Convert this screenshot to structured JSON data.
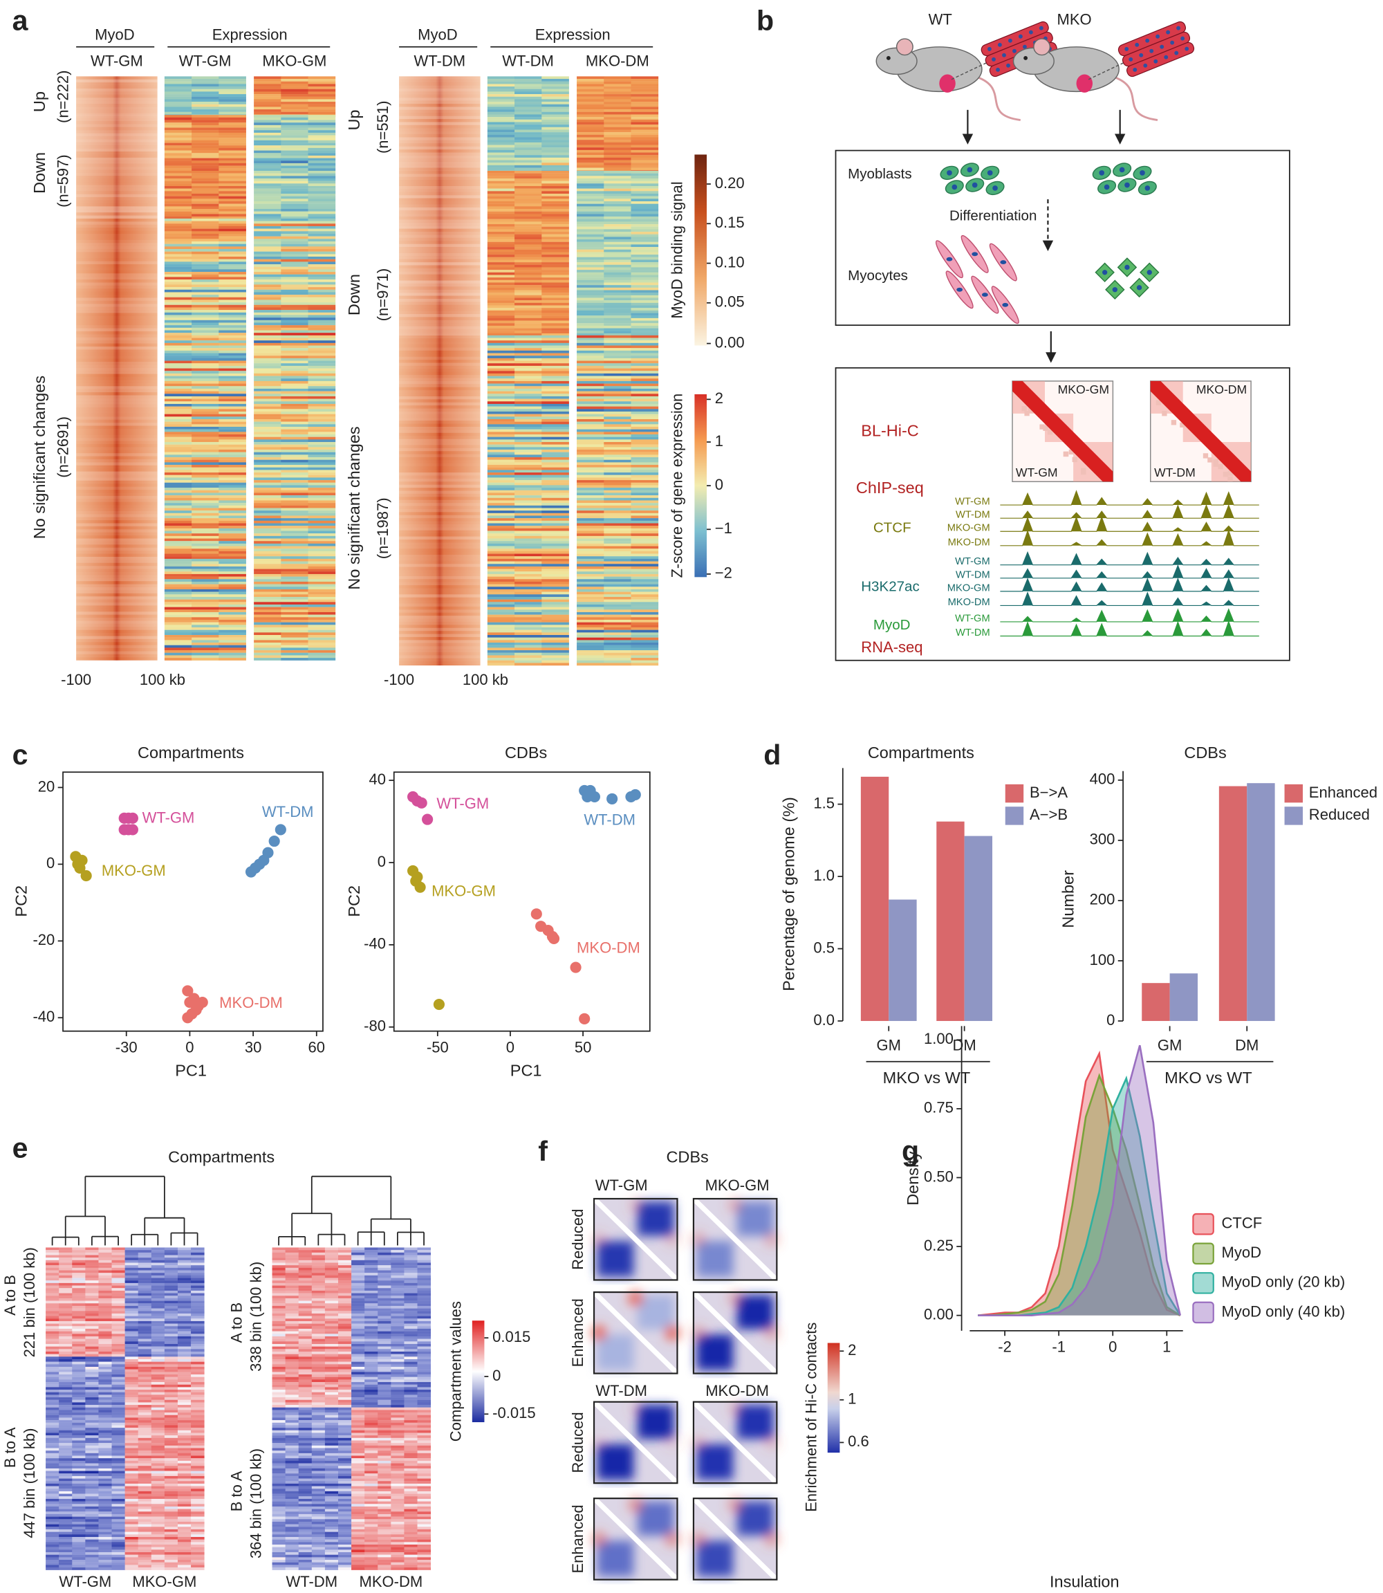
{
  "panels": {
    "a": {
      "label": "a",
      "left": {
        "myod": "MyoD",
        "myod_sample": "WT-GM",
        "expression": "Expression",
        "samples": [
          "WT-GM",
          "MKO-GM"
        ],
        "groups": [
          {
            "name": "Up",
            "n": "(n=222)"
          },
          {
            "name": "Down",
            "n": "(n=597)"
          },
          {
            "name": "No significant changes",
            "n": "(n=2691)"
          }
        ],
        "axis": [
          "-100",
          "100 kb"
        ]
      },
      "right": {
        "myod": "MyoD",
        "myod_sample": "WT-DM",
        "expression": "Expression",
        "samples": [
          "WT-DM",
          "MKO-DM"
        ],
        "groups": [
          {
            "name": "Up",
            "n": "(n=551)"
          },
          {
            "name": "Down",
            "n": "(n=971)"
          },
          {
            "name": "No significant changes",
            "n": "(n=1987)"
          }
        ],
        "axis": [
          "-100",
          "100 kb"
        ]
      },
      "binding_bar": {
        "title": "MyoD binding signal",
        "ticks": [
          "0.20",
          "0.15",
          "0.10",
          "0.05",
          "0.00"
        ]
      },
      "zscore_bar": {
        "title": "Z-score of gene expression",
        "ticks": [
          "2",
          "1",
          "0",
          "−1",
          "−2"
        ]
      }
    },
    "b": {
      "label": "b",
      "mice": [
        "WT",
        "MKO"
      ],
      "myoblasts": "Myoblasts",
      "differentiation": "Differentiation",
      "myocytes": "Myocytes",
      "hic": "BL-Hi-C",
      "hic_maps": [
        {
          "top": "MKO-GM",
          "bottom": "WT-GM"
        },
        {
          "top": "MKO-DM",
          "bottom": "WT-DM"
        }
      ],
      "chip": "ChIP-seq",
      "rna": "RNA-seq",
      "track_groups": [
        {
          "name": "CTCF",
          "tracks": [
            "WT-GM",
            "WT-DM",
            "MKO-GM",
            "MKO-DM"
          ]
        },
        {
          "name": "H3K27ac",
          "tracks": [
            "WT-GM",
            "WT-DM",
            "MKO-GM",
            "MKO-DM"
          ]
        },
        {
          "name": "MyoD",
          "tracks": [
            "WT-GM",
            "WT-DM"
          ]
        }
      ]
    },
    "c": {
      "label": "c"
    },
    "d": {
      "label": "d"
    },
    "e": {
      "label": "e",
      "title": "Compartments",
      "left": {
        "groups": [
          {
            "name": "A to B",
            "bins": "221 bin (100 kb)"
          },
          {
            "name": "B to A",
            "bins": "447 bin (100 kb)"
          }
        ],
        "samples": [
          "WT-GM",
          "MKO-GM"
        ]
      },
      "right": {
        "groups": [
          {
            "name": "A to B",
            "bins": "338 bin (100 kb)"
          },
          {
            "name": "B to A",
            "bins": "364 bin (100 kb)"
          }
        ],
        "samples": [
          "WT-DM",
          "MKO-DM"
        ]
      },
      "colorbar": {
        "title": "Compartment values",
        "ticks": [
          "0.015",
          "0",
          "-0.015"
        ]
      }
    },
    "f": {
      "label": "f",
      "title": "CDBs",
      "blocks": [
        {
          "samples": [
            "WT-GM",
            "MKO-GM"
          ],
          "rows": [
            "Reduced",
            "Enhanced"
          ]
        },
        {
          "samples": [
            "WT-DM",
            "MKO-DM"
          ],
          "rows": [
            "Reduced",
            "Enhanced"
          ]
        }
      ],
      "colorbar": {
        "title": "Enrichment of Hi-C contacts",
        "ticks": [
          "2",
          "1",
          "0.6"
        ]
      }
    },
    "g": {
      "label": "g"
    }
  },
  "chart_data": [
    {
      "type": "scatter",
      "title": "Compartments",
      "x_label": "PC1",
      "y_label": "PC2",
      "xlim": [
        -60,
        63
      ],
      "ylim": [
        -43.5,
        24
      ],
      "xticks": [
        -30,
        0,
        30,
        60
      ],
      "yticks": [
        20,
        0,
        -20,
        -40
      ],
      "series": [
        {
          "name": "WT-GM",
          "color": "#d4509a",
          "x": [
            -31,
            -29,
            -27,
            -31,
            -29,
            -27
          ],
          "values": [
            12,
            12,
            12,
            9,
            9,
            9
          ]
        },
        {
          "name": "MKO-GM",
          "color": "#b5a020",
          "x": [
            -54,
            -53,
            -51,
            -52,
            -49
          ],
          "values": [
            2,
            0,
            1,
            -1,
            -3
          ]
        },
        {
          "name": "WT-DM",
          "color": "#5a8ec0",
          "x": [
            29,
            31,
            33,
            35,
            37,
            40,
            43
          ],
          "values": [
            -2,
            -1,
            0,
            1,
            3,
            6,
            9
          ]
        },
        {
          "name": "MKO-DM",
          "color": "#e8706a",
          "x": [
            -1,
            0,
            2,
            4,
            6,
            1,
            -1,
            3
          ],
          "values": [
            -33,
            -36,
            -35,
            -37,
            -36,
            -39,
            -40,
            -38
          ]
        }
      ]
    },
    {
      "type": "scatter",
      "title": "CDBs",
      "x_label": "PC1",
      "y_label": "PC2",
      "xlim": [
        -80,
        96
      ],
      "ylim": [
        -82,
        44
      ],
      "xticks": [
        -50,
        0,
        50
      ],
      "yticks": [
        40,
        0,
        -40,
        -80
      ],
      "series": [
        {
          "name": "WT-GM",
          "color": "#d4509a",
          "x": [
            -67,
            -64,
            -61,
            -57
          ],
          "values": [
            32,
            30,
            29,
            21
          ]
        },
        {
          "name": "MKO-GM",
          "color": "#b5a020",
          "x": [
            -67,
            -64,
            -62,
            -65,
            -49
          ],
          "values": [
            -4,
            -7,
            -12,
            -9,
            -69
          ]
        },
        {
          "name": "WT-DM",
          "color": "#5a8ec0",
          "x": [
            51,
            53,
            55,
            58,
            70,
            83,
            86,
            53
          ],
          "values": [
            35,
            34,
            35,
            32,
            31,
            32,
            33,
            32
          ]
        },
        {
          "name": "MKO-DM",
          "color": "#e8706a",
          "x": [
            18,
            21,
            26,
            30,
            29,
            45,
            51
          ],
          "values": [
            -25,
            -31,
            -33,
            -37,
            -36,
            -51,
            -76
          ]
        }
      ]
    },
    {
      "type": "bar",
      "title": "Compartments",
      "y_label": "Percentage of genome (%)",
      "x_label": "MKO vs WT",
      "categories": [
        "GM",
        "DM"
      ],
      "ylim": [
        0,
        1.75
      ],
      "yticks": [
        {
          "value": 0,
          "label": "0.0"
        },
        0.5,
        {
          "value": 1,
          "label": "1.0"
        },
        1.5
      ],
      "series": [
        {
          "name": "B−>A",
          "color": "#d9686b",
          "values": [
            1.69,
            1.38
          ]
        },
        {
          "name": "A−>B",
          "color": "#8f96c4",
          "values": [
            0.84,
            1.28
          ]
        }
      ],
      "legend": "top-right"
    },
    {
      "type": "bar",
      "title": "CDBs",
      "y_label": "Number",
      "x_label": "MKO vs WT",
      "categories": [
        "GM",
        "DM"
      ],
      "ylim": [
        0,
        415
      ],
      "yticks": [
        0,
        100,
        200,
        300,
        400
      ],
      "series": [
        {
          "name": "Enhanced",
          "color": "#d9686b",
          "values": [
            63,
            390
          ]
        },
        {
          "name": "Reduced",
          "color": "#8f96c4",
          "values": [
            79,
            395
          ]
        }
      ],
      "legend": "top-right"
    },
    {
      "type": "density",
      "x_label": "Insulation",
      "y_label": "Density",
      "xlim": [
        -2.65,
        1.3
      ],
      "ylim": [
        -0.03,
        1.05
      ],
      "xticks": [
        -2,
        -1,
        0,
        1
      ],
      "yticks": [
        {
          "value": 0,
          "label": "0.00"
        },
        {
          "value": 0.25,
          "label": "0.25"
        },
        {
          "value": 0.5,
          "label": "0.50"
        },
        {
          "value": 0.75,
          "label": "0.75"
        },
        {
          "value": 1,
          "label": "1.00"
        }
      ],
      "x": [
        -2.5,
        -2.25,
        -2,
        -1.75,
        -1.5,
        -1.25,
        -1,
        -0.75,
        -0.5,
        -0.25,
        0,
        0.25,
        0.5,
        0.75,
        1,
        1.25
      ],
      "series": [
        {
          "name": "CTCF",
          "color": "#e8525a",
          "values": [
            0,
            0.005,
            0.01,
            0.01,
            0.03,
            0.08,
            0.25,
            0.55,
            0.85,
            0.95,
            0.6,
            0.45,
            0.3,
            0.12,
            0.02,
            0
          ]
        },
        {
          "name": "MyoD",
          "color": "#7aa33a",
          "values": [
            0,
            0,
            0.005,
            0.01,
            0.02,
            0.05,
            0.15,
            0.4,
            0.72,
            0.87,
            0.75,
            0.6,
            0.4,
            0.18,
            0.03,
            0
          ]
        },
        {
          "name": "MyoD only (20 kb)",
          "color": "#30b0a0",
          "values": [
            0,
            0,
            0,
            0,
            0.005,
            0.01,
            0.03,
            0.1,
            0.25,
            0.45,
            0.75,
            0.86,
            0.65,
            0.35,
            0.08,
            0
          ]
        },
        {
          "name": "MyoD only (40 kb)",
          "color": "#9a6fc0",
          "values": [
            0,
            0,
            0,
            0,
            0,
            0.005,
            0.01,
            0.04,
            0.1,
            0.2,
            0.4,
            0.8,
            0.98,
            0.7,
            0.2,
            0
          ]
        }
      ],
      "legend": "right"
    }
  ]
}
